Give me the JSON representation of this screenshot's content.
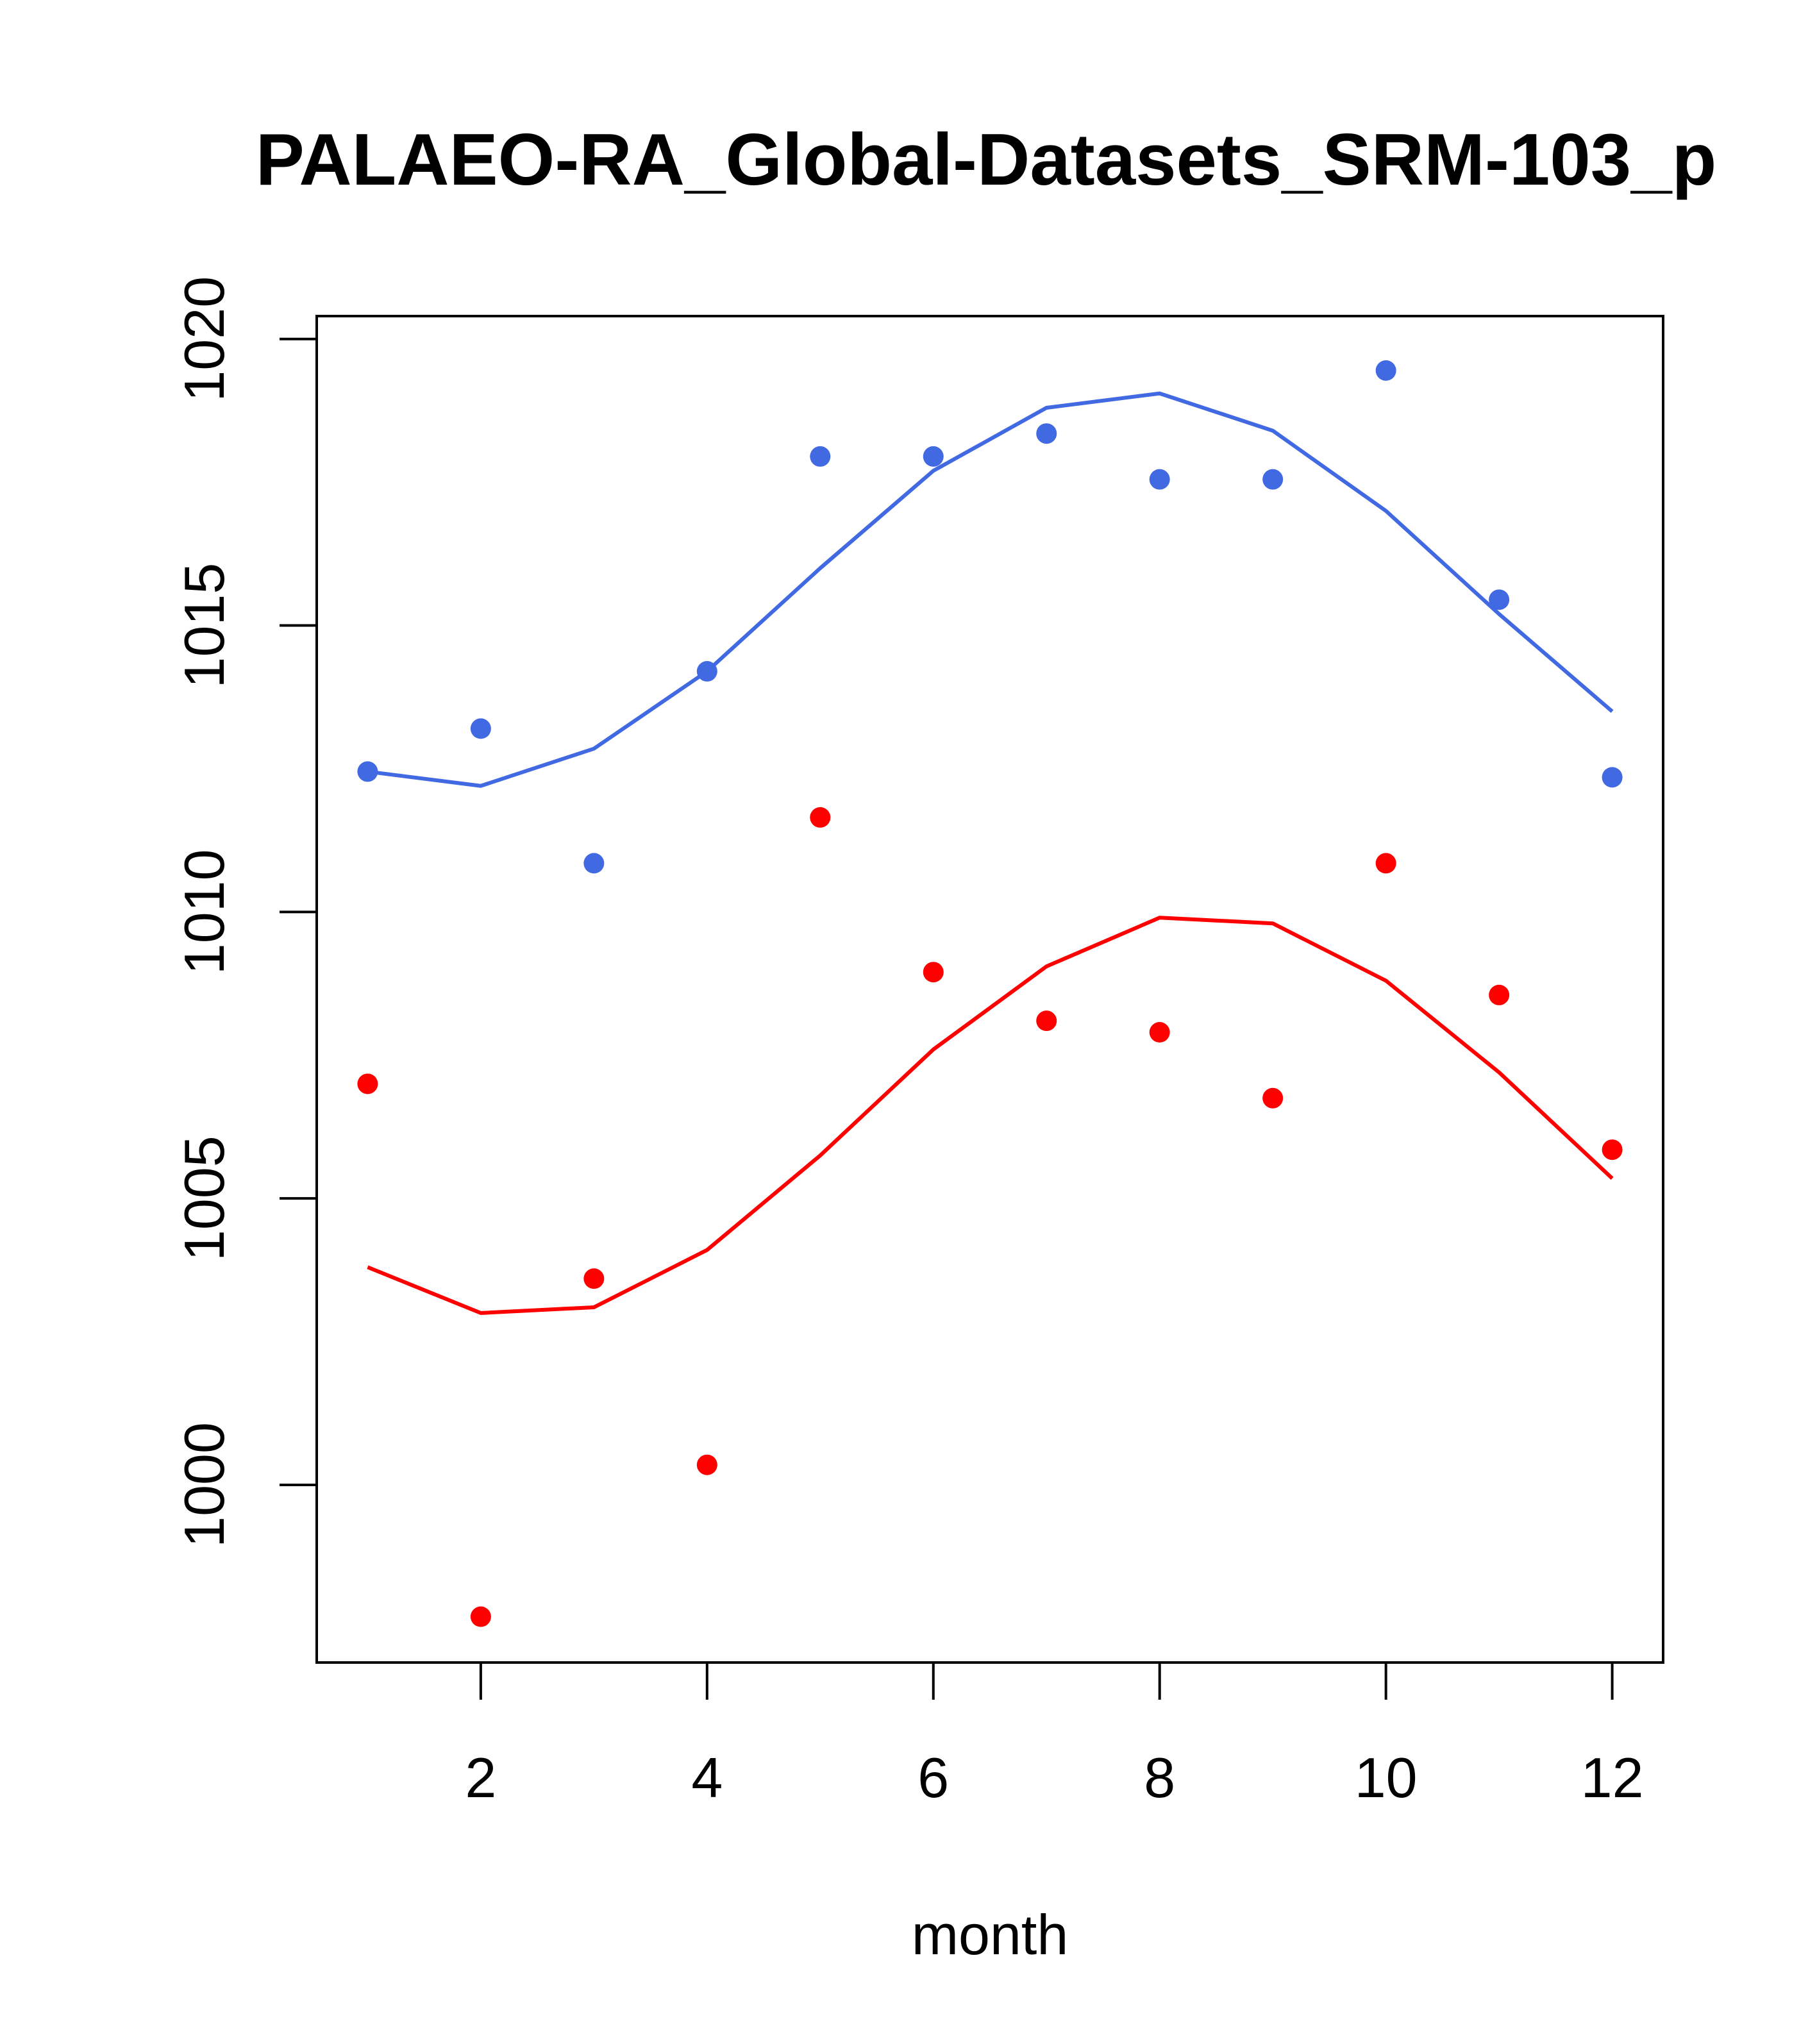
{
  "chart_data": {
    "type": "scatter",
    "title": "PALAEO-RA_Global-Datasets_SRM-103_p",
    "xlabel": "month",
    "ylabel": "",
    "xlim": [
      0.55,
      12.45
    ],
    "ylim": [
      996.9,
      1020.4
    ],
    "x_ticks": [
      {
        "value": 2,
        "label": "2"
      },
      {
        "value": 4,
        "label": "4"
      },
      {
        "value": 6,
        "label": "6"
      },
      {
        "value": 8,
        "label": "8"
      },
      {
        "value": 10,
        "label": "10"
      },
      {
        "value": 12,
        "label": "12"
      }
    ],
    "y_ticks": [
      {
        "value": 1000,
        "label": "1000"
      },
      {
        "value": 1005,
        "label": "1005"
      },
      {
        "value": 1010,
        "label": "1010"
      },
      {
        "value": 1015,
        "label": "1015"
      },
      {
        "value": 1020,
        "label": "1020"
      }
    ],
    "x": [
      1,
      2,
      3,
      4,
      5,
      6,
      7,
      8,
      9,
      10,
      11,
      12
    ],
    "series": [
      {
        "name": "blue points",
        "kind": "points",
        "color": "#4169E1",
        "values": [
          1012.45,
          1013.2,
          1010.85,
          1014.2,
          1017.95,
          1017.95,
          1018.35,
          1017.55,
          1017.55,
          1019.45,
          1015.45,
          1012.35
        ]
      },
      {
        "name": "blue smooth",
        "kind": "line",
        "color": "#4169E1",
        "values": [
          1012.45,
          1012.2,
          1012.85,
          1014.2,
          1016.0,
          1017.7,
          1018.8,
          1019.05,
          1018.4,
          1017.0,
          1015.2,
          1013.5
        ]
      },
      {
        "name": "red points",
        "kind": "points",
        "color": "#FF0000",
        "values": [
          1007.0,
          997.7,
          1003.6,
          1000.35,
          1011.65,
          1008.95,
          1008.1,
          1007.9,
          1006.75,
          1010.85,
          1008.55,
          1005.85
        ]
      },
      {
        "name": "red smooth",
        "kind": "line",
        "color": "#FF0000",
        "values": [
          1003.8,
          1003.0,
          1003.1,
          1004.1,
          1005.75,
          1007.6,
          1009.05,
          1009.9,
          1009.8,
          1008.8,
          1007.2,
          1005.35
        ]
      }
    ]
  }
}
